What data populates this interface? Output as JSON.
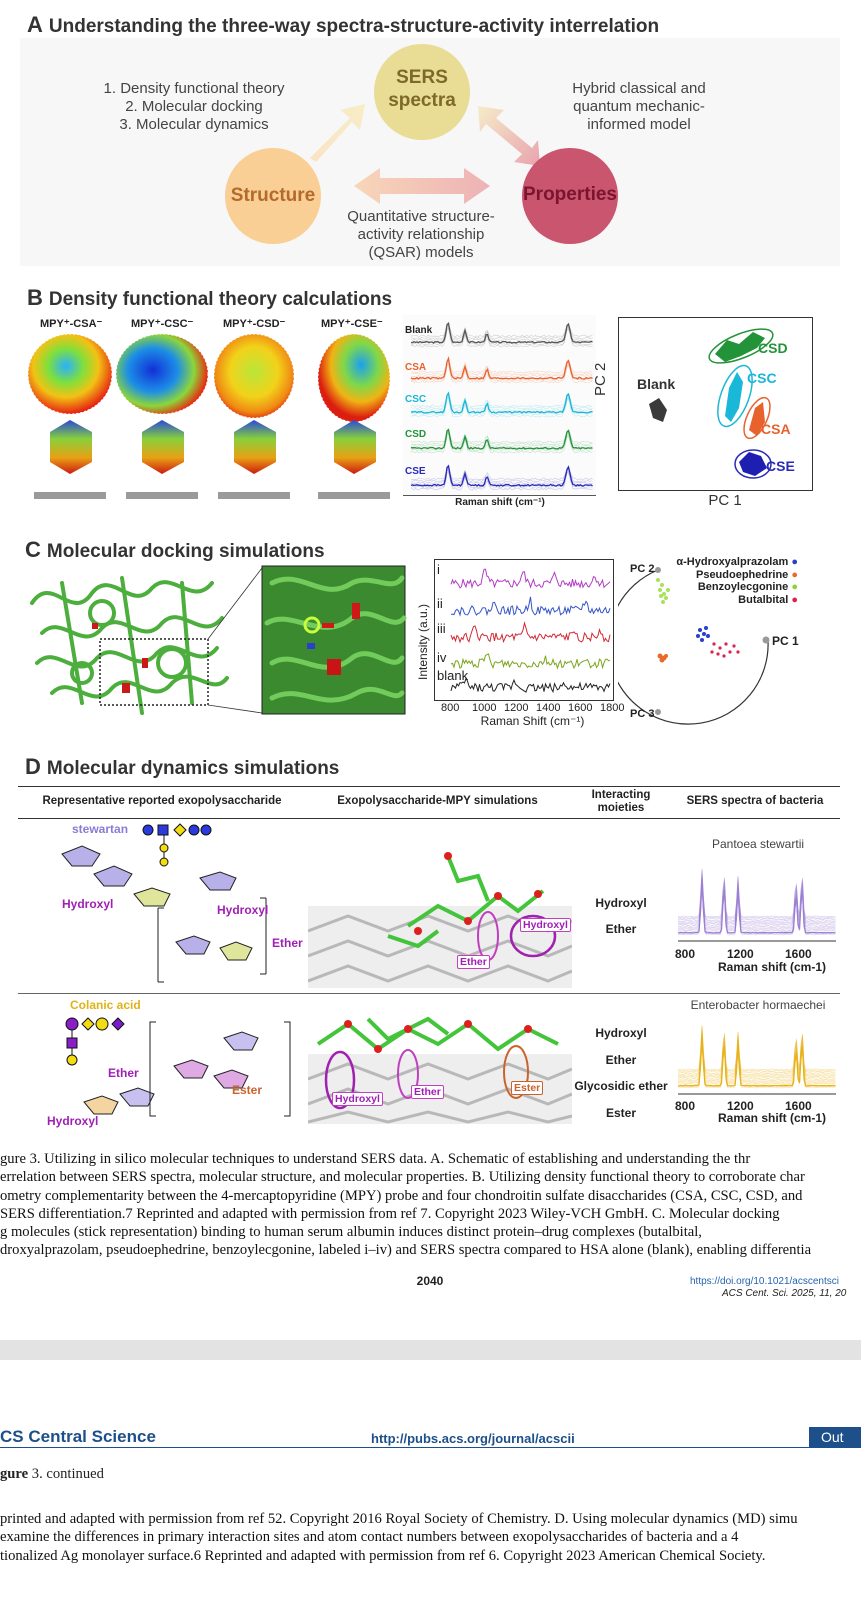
{
  "figure": {
    "panel_a": {
      "letter": "A",
      "title": "Understanding the three-way spectra-structure-activity interrelation",
      "methods_list": [
        "1. Density functional theory",
        "2. Molecular docking",
        "3. Molecular dynamics"
      ],
      "circle_sers": [
        "SERS",
        "spectra"
      ],
      "circle_structure": "Structure",
      "circle_properties": "Properties",
      "hybrid_model": [
        "Hybrid classical and",
        "quantum mechanic-",
        "informed model"
      ],
      "qsar": [
        "Quantitative structure-",
        "activity relationship",
        "(QSAR) models"
      ],
      "colors": {
        "sers": "#e9dc94",
        "structure": "#f9cf96",
        "properties": "#c9566e"
      }
    },
    "panel_b": {
      "letter": "B",
      "title": "Density functional theory calculations",
      "molecule_labels": [
        "MPY⁺-CSA⁻",
        "MPY⁺-CSC⁻",
        "MPY⁺-CSD⁻",
        "MPY⁺-CSE⁻"
      ],
      "spectra_labels": [
        "Blank",
        "CSA",
        "CSC",
        "CSD",
        "CSE"
      ],
      "spectra_colors": [
        "#555555",
        "#e8622c",
        "#19b7d8",
        "#23933a",
        "#2a2ab8"
      ],
      "spectra_xlabel": "Raman shift (cm⁻¹)",
      "pca_xlabel": "PC 1",
      "pca_ylabel": "PC 2",
      "pca_groups": [
        "Blank",
        "CSD",
        "CSC",
        "CSA",
        "CSE"
      ]
    },
    "panel_c": {
      "letter": "C",
      "title": "Molecular docking simulations",
      "trace_labels": [
        "i",
        "ii",
        "iii",
        "iv",
        "blank"
      ],
      "trace_colors": [
        "#b23cc4",
        "#3555c8",
        "#d02a36",
        "#7aa51c",
        "#222222"
      ],
      "ylabel": "Intensity (a.u.)",
      "xlabel": "Raman Shift (cm⁻¹)",
      "xticks": [
        "800",
        "1000",
        "1200",
        "1400",
        "1600",
        "1800"
      ],
      "pca_axes": [
        "PC 1",
        "PC 2",
        "PC 3"
      ],
      "legend": [
        {
          "name": "α-Hydroxyalprazolam",
          "color": "#2a3fd0"
        },
        {
          "name": "Pseudoephedrine",
          "color": "#e8692c"
        },
        {
          "name": "Benzoylecgonine",
          "color": "#8ed332"
        },
        {
          "name": "Butalbital",
          "color": "#e0204a"
        }
      ]
    },
    "panel_d": {
      "letter": "D",
      "title": "Molecular dynamics simulations",
      "headers": [
        "Representative reported exopolysaccharide",
        "Exopolysaccharide-MPY simulations",
        "Interacting moieties",
        "SERS spectra of bacteria"
      ],
      "row1": {
        "name": "stewartan",
        "labels": [
          "Hydroxyl",
          "Hydroxyl",
          "Ether"
        ],
        "sim_labels": [
          "Hydroxyl",
          "Ether"
        ],
        "moieties": [
          "Hydroxyl",
          "Ether"
        ],
        "bacterium": "Pantoea stewartii",
        "spectrum_color": "#9b7fd2",
        "xticks": [
          "800",
          "1200",
          "1600"
        ],
        "xlabel": "Raman shift (cm-1)"
      },
      "row2": {
        "name": "Colanic acid",
        "labels": [
          "Ether",
          "Ester",
          "Hydroxyl"
        ],
        "sim_labels": [
          "Hydroxyl",
          "Ether",
          "Ester"
        ],
        "moieties": [
          "Hydroxyl",
          "Ether",
          "Glycosidic ether",
          "Ester"
        ],
        "bacterium": "Enterobacter hormaechei",
        "spectrum_color": "#e8b21a",
        "xticks": [
          "800",
          "1200",
          "1600"
        ],
        "xlabel": "Raman shift (cm-1)"
      }
    }
  },
  "caption_lines": [
    "gure 3. Utilizing in silico molecular techniques to understand SERS data. A. Schematic of establishing and understanding the thr",
    "errelation between SERS spectra, molecular structure, and molecular properties. B. Utilizing density functional theory to corroborate char",
    "ometry complementarity between the 4-mercaptopyridine (MPY) probe and four chondroitin sulfate disaccharides (CSA, CSC, CSD, and",
    " SERS differentiation.7 Reprinted and adapted with permission from ref 7. Copyright 2023 Wiley-VCH GmbH. C. Molecular docking",
    "g molecules (stick representation) binding to human serum albumin induces distinct protein–drug complexes (butalbital,",
    "droxyalprazolam, pseudoephedrine, benzoylecgonine, labeled i–iv) and SERS spectra compared to HSA alone (blank), enabling differentia"
  ],
  "footer": {
    "page_number": "2040",
    "doi": "https://doi.org/10.1021/acscentsci",
    "citation": "ACS Cent. Sci. 2025, 11, 20"
  },
  "next_page": {
    "journal": "CS Central Science",
    "url": "http://pubs.acs.org/journal/acscii",
    "tab": "Out",
    "continued_label": "gure",
    "continued_text": "3. continued",
    "lines": [
      "printed and adapted with permission from ref 52. Copyright 2016 Royal Society of Chemistry. D. Using molecular dynamics (MD) simu",
      "examine the differences in primary interaction sites and atom contact numbers between exopolysaccharides of bacteria and a 4",
      "tionalized Ag monolayer surface.6 Reprinted and adapted with permission from ref 6. Copyright 2023 American Chemical Society."
    ]
  }
}
